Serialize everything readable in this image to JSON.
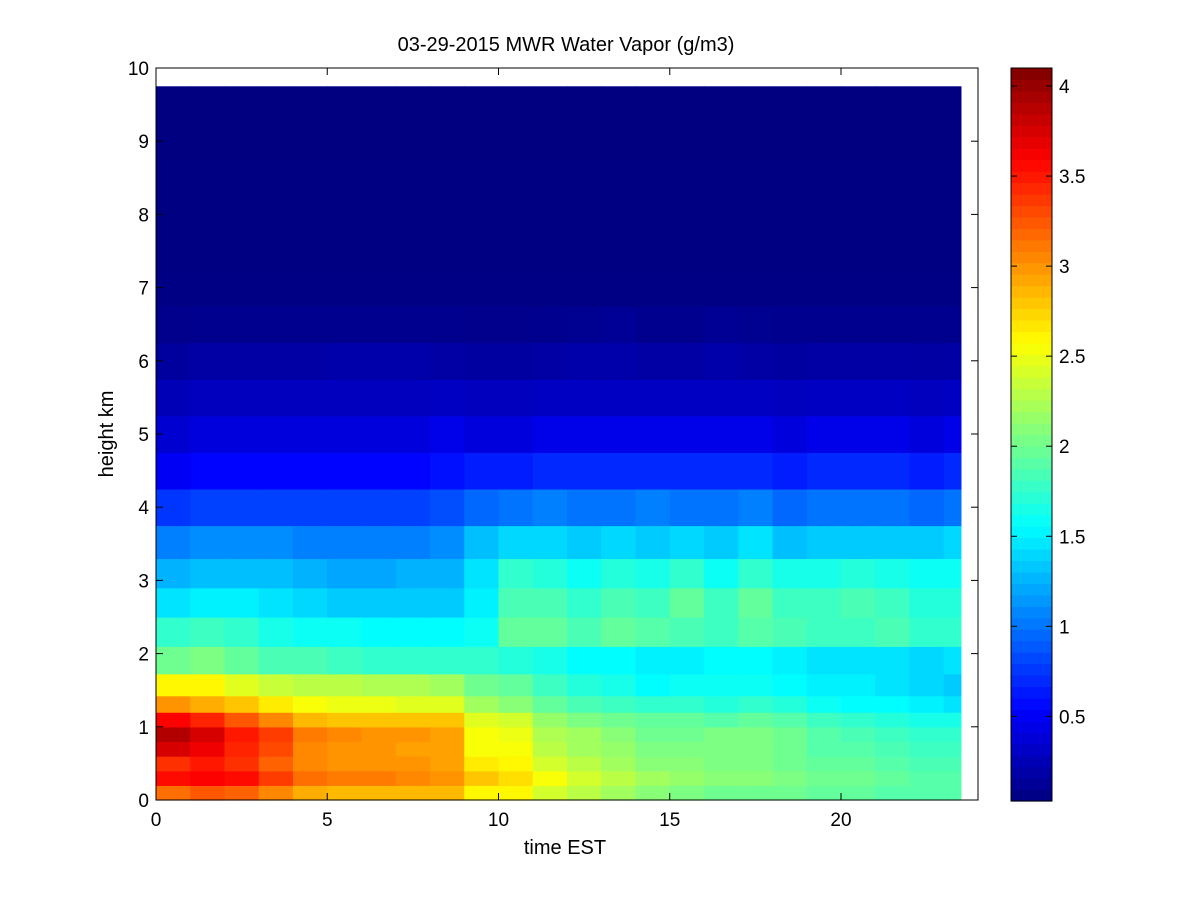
{
  "chart_data": {
    "type": "heatmap",
    "title": "03-29-2015 MWR Water Vapor (g/m3)",
    "xlabel": "time EST",
    "ylabel": "height km",
    "xlim": [
      0,
      24
    ],
    "ylim": [
      0,
      10
    ],
    "x_ticks": [
      0,
      5,
      10,
      15,
      20
    ],
    "y_ticks": [
      0,
      1,
      2,
      3,
      4,
      5,
      6,
      7,
      8,
      9,
      10
    ],
    "colorbar": {
      "colormap": "jet",
      "range": [
        0.03,
        4.1
      ],
      "ticks": [
        0.5,
        1,
        1.5,
        2,
        2.5,
        3,
        3.5,
        4
      ]
    },
    "x_hours": [
      0,
      1,
      2,
      3,
      4,
      5,
      6,
      7,
      8,
      9,
      10,
      11,
      12,
      13,
      14,
      15,
      16,
      17,
      18,
      19,
      20,
      21,
      22,
      23
    ],
    "profile_heights_km": [
      0.1,
      0.3,
      0.5,
      0.7,
      0.9,
      1.1,
      1.3,
      1.55,
      1.9,
      2.3,
      2.7,
      3.1,
      3.5,
      4.0,
      4.5,
      5.0,
      5.5,
      6.0,
      6.5,
      7.0,
      7.5,
      8.0,
      8.5,
      9.0,
      9.5
    ],
    "values": [
      [
        3.15,
        3.25,
        3.2,
        3.05,
        2.9,
        2.85,
        2.85,
        2.85,
        2.85,
        2.6,
        2.6,
        2.4,
        2.3,
        2.2,
        2.1,
        2.05,
        2.0,
        2.0,
        2.0,
        1.95,
        1.95,
        1.9,
        1.9,
        1.9
      ],
      [
        3.55,
        3.6,
        3.55,
        3.35,
        3.15,
        3.1,
        3.1,
        3.05,
        3.0,
        2.8,
        2.7,
        2.55,
        2.4,
        2.3,
        2.2,
        2.15,
        2.1,
        2.1,
        2.05,
        2.0,
        2.0,
        1.95,
        1.9,
        1.9
      ],
      [
        3.4,
        3.5,
        3.4,
        3.2,
        3.05,
        3.0,
        3.0,
        3.0,
        2.95,
        2.65,
        2.6,
        2.4,
        2.3,
        2.2,
        2.1,
        2.1,
        2.05,
        2.05,
        2.0,
        1.95,
        1.95,
        1.9,
        1.85,
        1.85
      ],
      [
        3.75,
        3.65,
        3.45,
        3.3,
        3.05,
        3.0,
        3.0,
        2.95,
        2.95,
        2.55,
        2.55,
        2.3,
        2.2,
        2.15,
        2.05,
        2.05,
        2.05,
        2.05,
        2.0,
        1.9,
        1.9,
        1.85,
        1.8,
        1.8
      ],
      [
        3.9,
        3.75,
        3.5,
        3.35,
        3.1,
        3.05,
        3.0,
        3.0,
        2.95,
        2.55,
        2.5,
        2.25,
        2.2,
        2.1,
        2.0,
        2.0,
        2.05,
        2.05,
        2.0,
        1.9,
        1.85,
        1.8,
        1.75,
        1.75
      ],
      [
        3.6,
        3.45,
        3.25,
        3.05,
        2.85,
        2.8,
        2.8,
        2.8,
        2.8,
        2.45,
        2.4,
        2.15,
        2.05,
        2.0,
        1.95,
        1.95,
        1.9,
        1.95,
        1.9,
        1.8,
        1.75,
        1.7,
        1.65,
        1.65
      ],
      [
        3.0,
        2.9,
        2.8,
        2.65,
        2.55,
        2.5,
        2.5,
        2.45,
        2.45,
        2.2,
        2.1,
        1.95,
        1.85,
        1.8,
        1.75,
        1.75,
        1.7,
        1.75,
        1.7,
        1.6,
        1.55,
        1.55,
        1.5,
        1.45
      ],
      [
        2.6,
        2.6,
        2.45,
        2.35,
        2.3,
        2.3,
        2.25,
        2.25,
        2.2,
        2.0,
        1.95,
        1.8,
        1.7,
        1.65,
        1.55,
        1.6,
        1.6,
        1.6,
        1.55,
        1.5,
        1.5,
        1.45,
        1.4,
        1.35
      ],
      [
        2.0,
        2.05,
        1.95,
        1.85,
        1.85,
        1.8,
        1.75,
        1.75,
        1.75,
        1.75,
        1.7,
        1.65,
        1.55,
        1.55,
        1.5,
        1.5,
        1.55,
        1.55,
        1.5,
        1.45,
        1.45,
        1.45,
        1.4,
        1.45
      ],
      [
        1.75,
        1.8,
        1.75,
        1.65,
        1.6,
        1.6,
        1.55,
        1.55,
        1.55,
        1.6,
        1.95,
        1.95,
        1.85,
        1.95,
        1.9,
        1.85,
        1.8,
        1.9,
        1.85,
        1.8,
        1.8,
        1.85,
        1.75,
        1.75
      ],
      [
        1.45,
        1.5,
        1.5,
        1.45,
        1.4,
        1.35,
        1.35,
        1.35,
        1.35,
        1.5,
        1.85,
        1.85,
        1.75,
        1.85,
        1.8,
        1.95,
        1.8,
        1.95,
        1.8,
        1.8,
        1.85,
        1.8,
        1.7,
        1.7
      ],
      [
        1.25,
        1.3,
        1.3,
        1.3,
        1.25,
        1.2,
        1.2,
        1.25,
        1.25,
        1.45,
        1.75,
        1.7,
        1.6,
        1.7,
        1.65,
        1.75,
        1.6,
        1.75,
        1.65,
        1.65,
        1.7,
        1.65,
        1.6,
        1.6
      ],
      [
        1.05,
        1.1,
        1.1,
        1.1,
        1.05,
        1.05,
        1.05,
        1.05,
        1.1,
        1.3,
        1.4,
        1.4,
        1.35,
        1.4,
        1.35,
        1.4,
        1.35,
        1.45,
        1.3,
        1.35,
        1.35,
        1.35,
        1.35,
        1.4
      ],
      [
        0.75,
        0.8,
        0.8,
        0.8,
        0.8,
        0.8,
        0.8,
        0.8,
        0.85,
        0.95,
        1.0,
        1.05,
        1.0,
        1.0,
        1.05,
        1.0,
        1.0,
        1.05,
        0.95,
        1.0,
        1.0,
        1.0,
        0.95,
        1.0
      ],
      [
        0.5,
        0.55,
        0.55,
        0.55,
        0.55,
        0.55,
        0.55,
        0.55,
        0.6,
        0.65,
        0.65,
        0.7,
        0.7,
        0.7,
        0.7,
        0.7,
        0.7,
        0.7,
        0.65,
        0.7,
        0.7,
        0.7,
        0.65,
        0.7
      ],
      [
        0.35,
        0.4,
        0.4,
        0.4,
        0.4,
        0.4,
        0.4,
        0.4,
        0.45,
        0.4,
        0.4,
        0.45,
        0.45,
        0.45,
        0.45,
        0.45,
        0.45,
        0.45,
        0.4,
        0.45,
        0.45,
        0.45,
        0.4,
        0.45
      ],
      [
        0.25,
        0.28,
        0.28,
        0.28,
        0.28,
        0.28,
        0.28,
        0.28,
        0.3,
        0.28,
        0.28,
        0.3,
        0.3,
        0.3,
        0.3,
        0.3,
        0.3,
        0.3,
        0.28,
        0.3,
        0.3,
        0.3,
        0.28,
        0.3
      ],
      [
        0.15,
        0.18,
        0.18,
        0.18,
        0.18,
        0.2,
        0.2,
        0.2,
        0.18,
        0.16,
        0.16,
        0.18,
        0.2,
        0.2,
        0.18,
        0.18,
        0.2,
        0.18,
        0.16,
        0.18,
        0.18,
        0.18,
        0.17,
        0.18
      ],
      [
        0.08,
        0.09,
        0.09,
        0.09,
        0.09,
        0.09,
        0.09,
        0.09,
        0.09,
        0.08,
        0.08,
        0.09,
        0.1,
        0.12,
        0.09,
        0.09,
        0.11,
        0.1,
        0.09,
        0.09,
        0.09,
        0.09,
        0.09,
        0.09
      ],
      [
        0.05,
        0.05,
        0.05,
        0.05,
        0.05,
        0.05,
        0.05,
        0.05,
        0.05,
        0.05,
        0.05,
        0.05,
        0.05,
        0.05,
        0.05,
        0.05,
        0.05,
        0.05,
        0.05,
        0.05,
        0.05,
        0.05,
        0.05,
        0.05
      ],
      [
        0.04,
        0.04,
        0.04,
        0.04,
        0.04,
        0.04,
        0.04,
        0.04,
        0.04,
        0.04,
        0.04,
        0.04,
        0.04,
        0.04,
        0.04,
        0.04,
        0.04,
        0.04,
        0.04,
        0.04,
        0.04,
        0.04,
        0.04,
        0.04
      ],
      [
        0.04,
        0.04,
        0.04,
        0.04,
        0.04,
        0.04,
        0.04,
        0.04,
        0.04,
        0.04,
        0.04,
        0.04,
        0.04,
        0.04,
        0.04,
        0.04,
        0.04,
        0.04,
        0.04,
        0.04,
        0.04,
        0.04,
        0.04,
        0.04
      ],
      [
        0.04,
        0.04,
        0.04,
        0.04,
        0.04,
        0.04,
        0.04,
        0.04,
        0.04,
        0.04,
        0.04,
        0.04,
        0.04,
        0.04,
        0.04,
        0.04,
        0.04,
        0.04,
        0.04,
        0.04,
        0.04,
        0.04,
        0.04,
        0.04
      ],
      [
        0.03,
        0.03,
        0.03,
        0.03,
        0.03,
        0.03,
        0.03,
        0.03,
        0.03,
        0.03,
        0.03,
        0.03,
        0.03,
        0.03,
        0.03,
        0.03,
        0.03,
        0.03,
        0.03,
        0.03,
        0.03,
        0.03,
        0.03,
        0.03
      ],
      [
        0.03,
        0.03,
        0.03,
        0.03,
        0.03,
        0.03,
        0.03,
        0.03,
        0.03,
        0.03,
        0.03,
        0.03,
        0.03,
        0.03,
        0.03,
        0.03,
        0.03,
        0.03,
        0.03,
        0.03,
        0.03,
        0.03,
        0.03,
        0.03
      ]
    ]
  }
}
